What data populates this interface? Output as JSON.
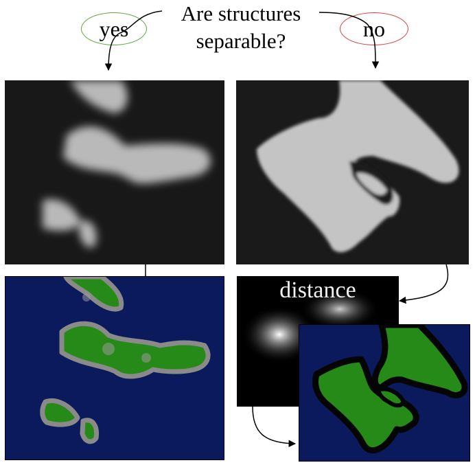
{
  "question": {
    "line1": "Are structures",
    "line2": "separable?"
  },
  "branches": {
    "yes": "yes",
    "no": "no"
  },
  "labels": {
    "distance": "distance"
  },
  "colors": {
    "yes_oval": "#5aa83a",
    "no_oval": "#d94040",
    "background_blue": "#0b1a5c",
    "region_green": "#258a18",
    "boundary_gray": "#8a8a8a",
    "outline_black": "#050505"
  }
}
